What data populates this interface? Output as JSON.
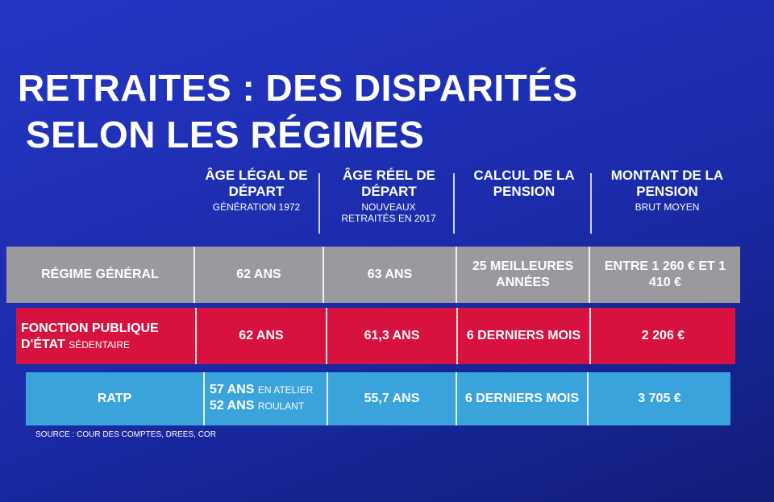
{
  "header": {
    "title": [
      "RETRAITES : DES DISPARITÉS",
      "SELON LES RÉGIMES"
    ]
  },
  "table": {
    "columns": [
      {
        "title": "ÂGE LÉGAL DE DÉPART",
        "subtitle": "GÉNÉRATION 1972"
      },
      {
        "title": "ÂGE RÉEL DE DÉPART",
        "subtitle": "NOUVEAUX RETRAITÉS EN 2017"
      },
      {
        "title": "CALCUL DE LA PENSION"
      },
      {
        "title": "MONTANT DE LA PENSION",
        "subtitle": "BRUT MOYEN"
      }
    ],
    "rows": [
      {
        "label": "RÉGIME GÉNÉRAL",
        "cells": [
          "62 ANS",
          "63 ANS",
          "25 MEILLEURES ANNÉES",
          "ENTRE 1 260 € ET 1 410 €"
        ]
      },
      {
        "label": "FONCTION PUBLIQUE D'ÉTAT",
        "note": "SÉDENTAIRE",
        "cells": [
          "62 ANS",
          "61,3 ANS",
          "6 DERNIERS MOIS",
          "2 206 €"
        ]
      },
      {
        "label": "RATP",
        "cells": [
          [
            {
              "value": "57 ANS",
              "note": "EN ATELIER"
            },
            {
              "value": "52 ANS",
              "note": "ROULANT"
            }
          ],
          "55,7 ANS",
          "6 DERNIERS MOIS",
          "3 705 €"
        ]
      }
    ]
  },
  "footer": {
    "source": "SOURCE : COUR DES COMPTES, DREES, COR"
  }
}
